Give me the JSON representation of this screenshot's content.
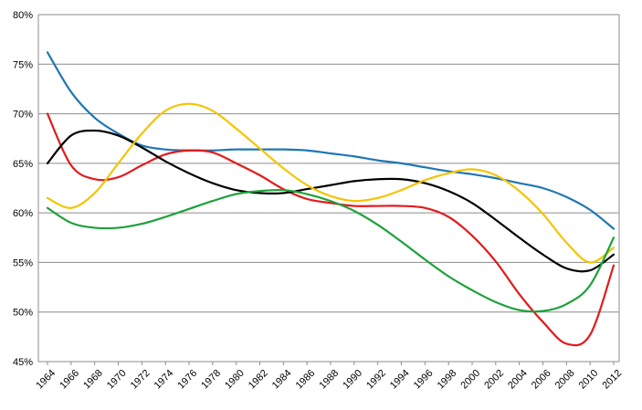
{
  "chart_data": {
    "type": "line",
    "title": "",
    "xlabel": "",
    "ylabel": "",
    "ylim": [
      45,
      80
    ],
    "y_tick_labels": [
      "45%",
      "50%",
      "55%",
      "60%",
      "65%",
      "70%",
      "75%",
      "80%"
    ],
    "y_tick_values": [
      45,
      50,
      55,
      60,
      65,
      70,
      75,
      80
    ],
    "x_tick_labels": [
      "1964",
      "1966",
      "1968",
      "1970",
      "1972",
      "1974",
      "1976",
      "1978",
      "1980",
      "1982",
      "1984",
      "1986",
      "1988",
      "1990",
      "1992",
      "1994",
      "1996",
      "1998",
      "2000",
      "2002",
      "2004",
      "2006",
      "2008",
      "2010",
      "2012"
    ],
    "x": [
      1964,
      1966,
      1968,
      1970,
      1972,
      1974,
      1976,
      1978,
      1980,
      1982,
      1984,
      1986,
      1988,
      1990,
      1992,
      1994,
      1996,
      1998,
      2000,
      2002,
      2004,
      2006,
      2008,
      2010,
      2012
    ],
    "grid": true,
    "legend": "none",
    "series": [
      {
        "color": "#1f77b4",
        "values": [
          76.2,
          72.2,
          69.6,
          68.0,
          66.8,
          66.4,
          66.3,
          66.3,
          66.4,
          66.4,
          66.4,
          66.3,
          66.0,
          65.7,
          65.3,
          65.0,
          64.6,
          64.2,
          63.9,
          63.5,
          63.0,
          62.5,
          61.6,
          60.3,
          58.4
        ]
      },
      {
        "color": "#e31a1c",
        "values": [
          70.0,
          64.8,
          63.4,
          63.6,
          64.8,
          65.9,
          66.3,
          66.1,
          65.0,
          63.8,
          62.4,
          61.4,
          61.0,
          60.7,
          60.7,
          60.7,
          60.5,
          59.6,
          57.7,
          55.1,
          51.8,
          49.0,
          46.8,
          47.7,
          54.7
        ]
      },
      {
        "color": "#000000",
        "values": [
          65.0,
          67.8,
          68.3,
          67.8,
          66.6,
          65.2,
          64.0,
          63.0,
          62.3,
          62.0,
          62.0,
          62.4,
          62.8,
          63.2,
          63.4,
          63.4,
          63.0,
          62.2,
          61.0,
          59.3,
          57.5,
          55.8,
          54.4,
          54.2,
          55.8
        ]
      },
      {
        "color": "#f5c400",
        "values": [
          61.5,
          60.5,
          62.0,
          65.0,
          68.0,
          70.3,
          71.0,
          70.3,
          68.5,
          66.5,
          64.5,
          62.8,
          61.7,
          61.2,
          61.5,
          62.3,
          63.3,
          64.0,
          64.4,
          63.8,
          62.2,
          59.9,
          57.0,
          55.0,
          56.5
        ]
      },
      {
        "color": "#1ea13a",
        "values": [
          60.5,
          59.0,
          58.5,
          58.5,
          58.9,
          59.6,
          60.4,
          61.2,
          61.9,
          62.2,
          62.3,
          61.9,
          61.2,
          60.2,
          58.8,
          57.1,
          55.3,
          53.6,
          52.2,
          51.0,
          50.2,
          50.1,
          50.8,
          52.7,
          57.5
        ]
      }
    ]
  }
}
